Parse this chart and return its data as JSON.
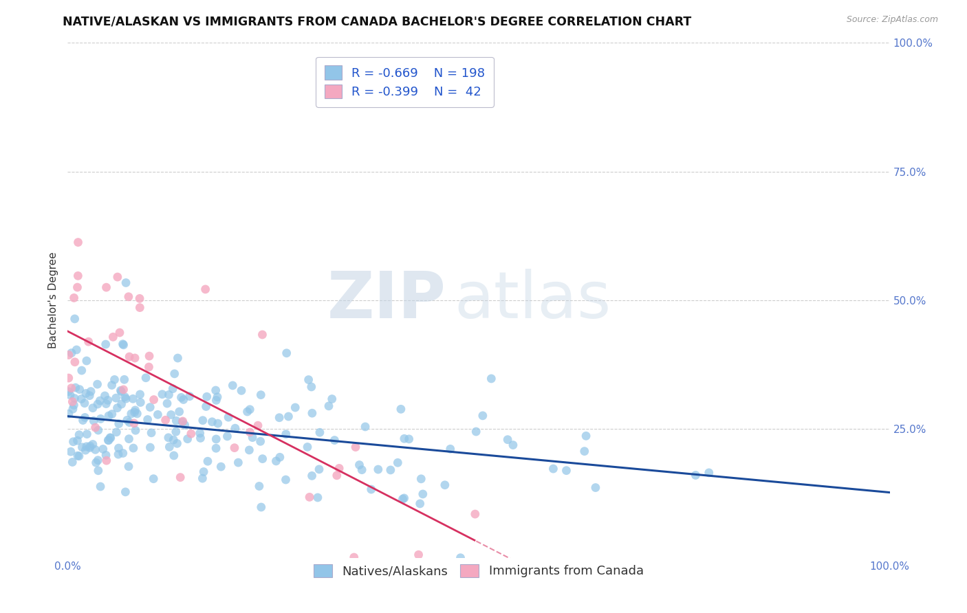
{
  "title": "NATIVE/ALASKAN VS IMMIGRANTS FROM CANADA BACHELOR'S DEGREE CORRELATION CHART",
  "source": "Source: ZipAtlas.com",
  "ylabel": "Bachelor's Degree",
  "xlim": [
    0,
    100
  ],
  "ylim": [
    0,
    100
  ],
  "xticks": [
    0,
    25,
    50,
    75,
    100
  ],
  "yticks": [
    0,
    25,
    50,
    75,
    100
  ],
  "blue_color": "#92C5E8",
  "pink_color": "#F4A8C0",
  "blue_line_color": "#1A4A9A",
  "pink_line_color": "#D63060",
  "grid_color": "#CCCCCC",
  "background_color": "#FFFFFF",
  "watermark_zip": "ZIP",
  "watermark_atlas": "atlas",
  "tick_color": "#5577CC",
  "legend_text_color": "#2255CC",
  "blue_intercept": 27.5,
  "blue_slope": -0.148,
  "pink_intercept": 44.0,
  "pink_slope": -0.82,
  "seed": 42,
  "title_fontsize": 12.5,
  "axis_label_fontsize": 11,
  "tick_fontsize": 11,
  "legend_fontsize": 13,
  "blue_N": 198,
  "pink_N": 42
}
